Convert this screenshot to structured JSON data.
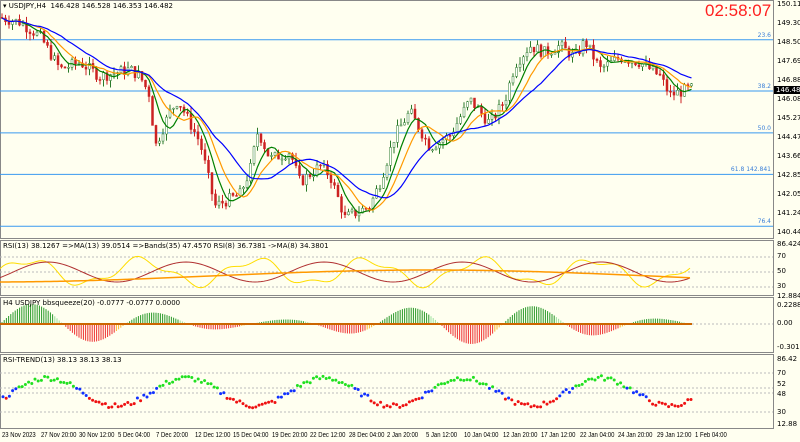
{
  "header": {
    "symbol_label": "USDJPY,H4",
    "ohlc": "146.428 146.528 146.353 146.482"
  },
  "clock": "02:58:07",
  "current_price": "146.482",
  "price_axis": [
    "150.110",
    "149.300",
    "148.500",
    "147.690",
    "146.880",
    "146.080",
    "145.270",
    "144.470",
    "143.660",
    "142.850",
    "142.050",
    "141.240",
    "140.440"
  ],
  "fib_levels": [
    {
      "label": "23.6",
      "price": 148.55
    },
    {
      "label": "38.2",
      "price": 146.38
    },
    {
      "label": "50.0",
      "price": 144.6
    },
    {
      "label": "61.8  142.841",
      "price": 142.84
    },
    {
      "label": "76.4",
      "price": 140.64
    }
  ],
  "rsi_panel": {
    "title": "RSI(13) 38.1267  =>MA(13) 39.0514  =>Bands(35) 47.4570  RSI(8) 36.7381  ->MA(8) 34.3801",
    "axis": [
      "86.4246",
      "70",
      "50",
      "30",
      "12.8843"
    ]
  },
  "bb_panel": {
    "title": "H4 USDJPY bbsqueeze(20) -0.0777 -0.0777 0.0000",
    "axis": [
      "0.2288",
      "0.00",
      "-0.3012"
    ]
  },
  "trend_panel": {
    "title": "RSI-TREND(13) 38.13 38.13 38.13",
    "axis": [
      "86.42",
      "70",
      "52",
      "48",
      "30",
      "12.88"
    ]
  },
  "time_axis": [
    "23 Nov 2023",
    "27 Nov 20:00",
    "30 Nov 12:00",
    "5 Dec 04:00",
    "7 Dec 20:00",
    "12 Dec 12:00",
    "15 Dec 04:00",
    "19 Dec 20:00",
    "22 Dec 12:00",
    "28 Dec 04:00",
    "2 Jan 20:00",
    "5 Jan 12:00",
    "10 Jan 04:00",
    "12 Jan 20:00",
    "17 Jan 12:00",
    "22 Jan 04:00",
    "24 Jan 20:00",
    "29 Jan 12:00",
    "1 Feb 04:00"
  ],
  "colors": {
    "bull": "#2a7a2a",
    "bear": "#cc2222",
    "fib": "#3a9af0",
    "ma_fast": "#ff9900",
    "ma_slow": "#0000ff",
    "ma_mid": "#008000"
  },
  "chart_data": {
    "type": "candlestick",
    "symbol": "USDJPY",
    "timeframe": "H4",
    "ylim": [
      140.44,
      150.11
    ],
    "close_path": [
      [
        0,
        149.5
      ],
      [
        20,
        149.3
      ],
      [
        40,
        148.7
      ],
      [
        60,
        147.3
      ],
      [
        80,
        147.6
      ],
      [
        100,
        147.0
      ],
      [
        130,
        147.3
      ],
      [
        140,
        147.0
      ],
      [
        150,
        146.2
      ],
      [
        155,
        144.0
      ],
      [
        170,
        145.5
      ],
      [
        178,
        146.0
      ],
      [
        200,
        144.2
      ],
      [
        215,
        141.5
      ],
      [
        240,
        142.0
      ],
      [
        250,
        143.0
      ],
      [
        258,
        144.7
      ],
      [
        270,
        143.5
      ],
      [
        290,
        143.8
      ],
      [
        300,
        142.5
      ],
      [
        320,
        143.2
      ],
      [
        330,
        142.8
      ],
      [
        345,
        141.0
      ],
      [
        370,
        141.5
      ],
      [
        380,
        142.5
      ],
      [
        395,
        144.5
      ],
      [
        410,
        145.5
      ],
      [
        430,
        144.0
      ],
      [
        450,
        144.5
      ],
      [
        470,
        146.0
      ],
      [
        490,
        145.0
      ],
      [
        505,
        146.0
      ],
      [
        515,
        147.5
      ],
      [
        530,
        148.3
      ],
      [
        545,
        148.0
      ],
      [
        560,
        148.3
      ],
      [
        575,
        147.8
      ],
      [
        585,
        148.5
      ],
      [
        600,
        147.3
      ],
      [
        620,
        147.8
      ],
      [
        640,
        147.6
      ],
      [
        660,
        147.0
      ],
      [
        670,
        146.2
      ],
      [
        690,
        146.48
      ]
    ]
  }
}
